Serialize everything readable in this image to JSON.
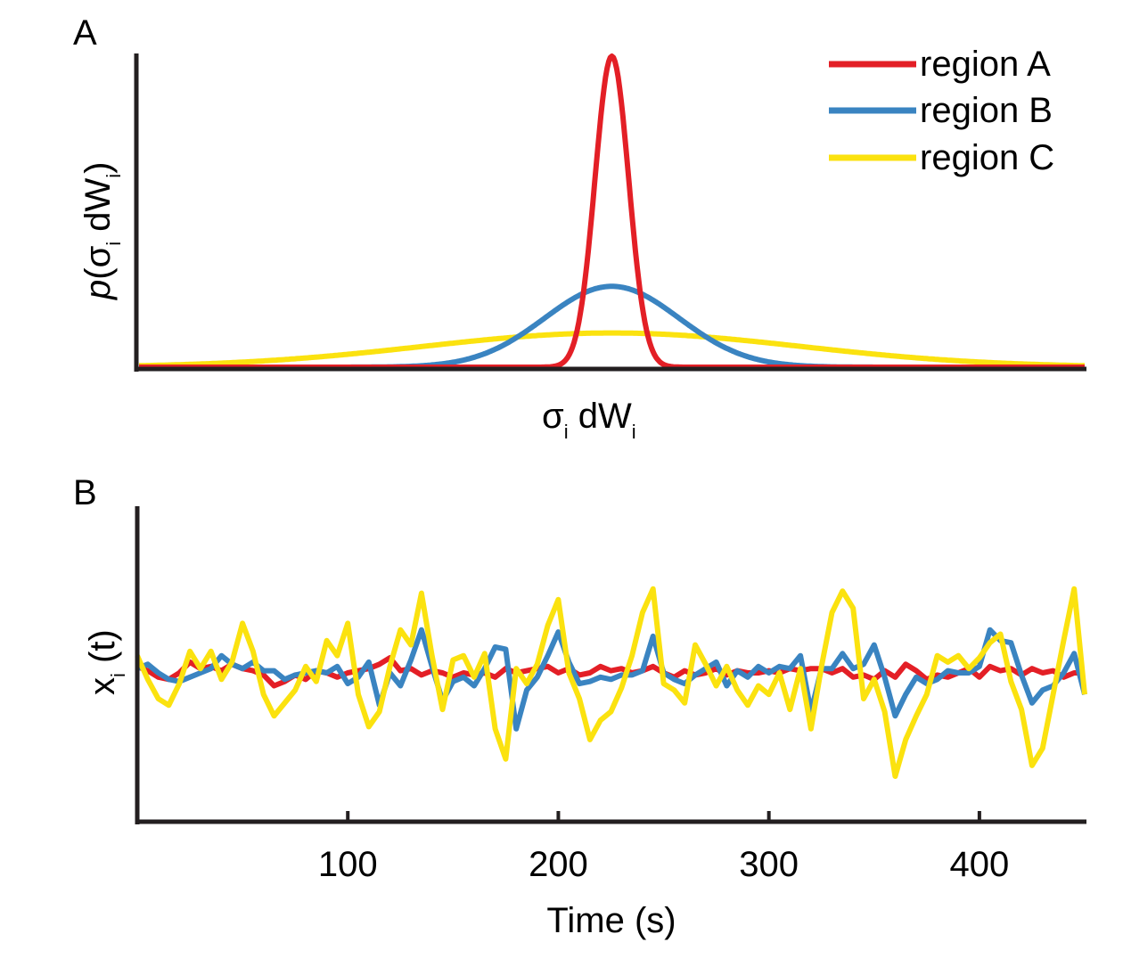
{
  "colors": {
    "region_a": "#e31f26",
    "region_b": "#3a84c1",
    "region_c": "#fbe20f",
    "axis": "#231f20"
  },
  "panels": {
    "a_letter": "A",
    "b_letter": "B"
  },
  "chart_data": [
    {
      "type": "line",
      "panel": "A",
      "xlabel_main": "σ",
      "xlabel_sub1": "i",
      "xlabel_mid": " dW",
      "xlabel_sub2": "i",
      "ylabel_pre": "p",
      "ylabel_open": "(σ",
      "ylabel_sub1": "i",
      "ylabel_mid": " dW",
      "ylabel_sub2": "i",
      "ylabel_close": ")",
      "xlim": [
        -225,
        225
      ],
      "ylim": [
        0,
        1
      ],
      "legend_position": "top-right",
      "series": [
        {
          "name": "region A",
          "color_key": "region_a",
          "distribution": "gaussian",
          "mean": 0,
          "sd": 8,
          "peak": 1.0
        },
        {
          "name": "region B",
          "color_key": "region_b",
          "distribution": "gaussian",
          "mean": 0,
          "sd": 32,
          "peak": 0.26
        },
        {
          "name": "region C",
          "color_key": "region_c",
          "distribution": "gaussian",
          "mean": 0,
          "sd": 90,
          "peak": 0.11
        }
      ]
    },
    {
      "type": "line",
      "panel": "B",
      "xlabel": "Time (s)",
      "ylabel_main": "x",
      "ylabel_sub": "i",
      "ylabel_rest": " (t)",
      "xlim": [
        0,
        450
      ],
      "ylim": [
        -6,
        6
      ],
      "xticks": [
        100,
        200,
        300,
        400
      ],
      "xtick_labels": [
        "100",
        "200",
        "300",
        "400"
      ],
      "series": [
        {
          "name": "region A",
          "color_key": "region_a",
          "x": [
            0,
            5,
            10,
            15,
            20,
            25,
            30,
            35,
            40,
            45,
            50,
            55,
            60,
            65,
            70,
            75,
            80,
            85,
            90,
            95,
            100,
            105,
            110,
            115,
            120,
            125,
            130,
            135,
            140,
            145,
            150,
            155,
            160,
            165,
            170,
            175,
            180,
            185,
            190,
            195,
            200,
            205,
            210,
            215,
            220,
            225,
            230,
            235,
            240,
            245,
            250,
            255,
            260,
            265,
            270,
            275,
            280,
            285,
            290,
            295,
            300,
            305,
            310,
            315,
            320,
            325,
            330,
            335,
            340,
            345,
            350,
            355,
            360,
            365,
            370,
            375,
            380,
            385,
            390,
            395,
            400,
            405,
            410,
            415,
            420,
            425,
            430,
            435,
            440,
            445,
            450
          ],
          "y": [
            0.3,
            0.1,
            -0.2,
            -0.3,
            0.0,
            0.5,
            0.2,
            0.3,
            0.1,
            0.4,
            0.2,
            0.1,
            -0.1,
            -0.6,
            -0.4,
            -0.1,
            -0.3,
            0.1,
            0.0,
            -0.2,
            0.0,
            0.1,
            0.2,
            0.4,
            0.7,
            0.1,
            0.2,
            -0.1,
            0.1,
            0.0,
            -0.2,
            0.0,
            -0.1,
            0.0,
            -0.2,
            0.2,
            0.0,
            0.1,
            0.2,
            0.3,
            0.0,
            0.2,
            -0.1,
            0.0,
            0.3,
            0.1,
            0.2,
            0.0,
            0.1,
            0.3,
            0.0,
            -0.2,
            0.1,
            -0.1,
            0.0,
            0.2,
            -0.1,
            0.1,
            0.0,
            0.0,
            0.1,
            0.0,
            0.2,
            0.1,
            0.2,
            0.2,
            0.0,
            0.2,
            -0.2,
            -0.1,
            -0.3,
            0.1,
            -0.2,
            0.4,
            0.1,
            -0.3,
            -0.1,
            -0.2,
            0.0,
            0.2,
            -0.2,
            0.3,
            0.1,
            0.2,
            -0.1,
            0.2,
            0.0,
            0.1,
            -0.2,
            0.0,
            0.0
          ]
        },
        {
          "name": "region B",
          "color_key": "region_b",
          "x": [
            0,
            5,
            10,
            15,
            20,
            25,
            30,
            35,
            40,
            45,
            50,
            55,
            60,
            65,
            70,
            75,
            80,
            85,
            90,
            95,
            100,
            105,
            110,
            115,
            120,
            125,
            130,
            135,
            140,
            145,
            150,
            155,
            160,
            165,
            170,
            175,
            180,
            185,
            190,
            195,
            200,
            205,
            210,
            215,
            220,
            225,
            230,
            235,
            240,
            245,
            250,
            255,
            260,
            265,
            270,
            275,
            280,
            285,
            290,
            295,
            300,
            305,
            310,
            315,
            320,
            325,
            330,
            335,
            340,
            345,
            350,
            355,
            360,
            365,
            370,
            375,
            380,
            385,
            390,
            395,
            400,
            405,
            410,
            415,
            420,
            425,
            430,
            435,
            440,
            445,
            450
          ],
          "y": [
            0.2,
            0.4,
            0.0,
            -0.3,
            -0.4,
            -0.2,
            0.0,
            0.2,
            0.8,
            0.4,
            0.2,
            0.5,
            0.1,
            0.1,
            -0.3,
            -0.1,
            0.0,
            0.1,
            0.0,
            0.3,
            -0.5,
            -0.2,
            0.5,
            -1.5,
            0.0,
            -0.6,
            0.6,
            2.0,
            0.3,
            -1.3,
            -0.4,
            -0.2,
            -0.6,
            0.2,
            1.2,
            1.1,
            -2.6,
            -0.8,
            -0.2,
            0.8,
            1.9,
            0.5,
            -0.5,
            -0.4,
            -0.2,
            -0.3,
            -0.1,
            -0.1,
            0.1,
            1.7,
            0.0,
            -0.3,
            -0.5,
            -0.1,
            0.2,
            0.5,
            -0.6,
            0.1,
            -0.2,
            0.3,
            0.0,
            0.3,
            0.2,
            0.8,
            -1.8,
            0.2,
            0.2,
            0.9,
            0.2,
            0.4,
            1.3,
            -0.2,
            -2.0,
            -1.0,
            -0.2,
            -0.5,
            -0.3,
            0.1,
            0.0,
            0.0,
            0.3,
            2.0,
            1.5,
            1.4,
            -0.1,
            -1.4,
            -0.8,
            -0.6,
            0.0,
            0.9,
            -1.0
          ]
        },
        {
          "name": "region C",
          "color_key": "region_c",
          "x": [
            0,
            5,
            10,
            15,
            20,
            25,
            30,
            35,
            40,
            45,
            50,
            55,
            60,
            65,
            70,
            75,
            80,
            85,
            90,
            95,
            100,
            105,
            110,
            115,
            120,
            125,
            130,
            135,
            140,
            145,
            150,
            155,
            160,
            165,
            170,
            175,
            180,
            185,
            190,
            195,
            200,
            205,
            210,
            215,
            220,
            225,
            230,
            235,
            240,
            245,
            250,
            255,
            260,
            265,
            270,
            275,
            280,
            285,
            290,
            295,
            300,
            305,
            310,
            315,
            320,
            325,
            330,
            335,
            340,
            345,
            350,
            355,
            360,
            365,
            370,
            375,
            380,
            385,
            390,
            395,
            400,
            405,
            410,
            415,
            420,
            425,
            430,
            435,
            440,
            445,
            450
          ],
          "y": [
            0.8,
            -0.3,
            -1.2,
            -1.5,
            -0.5,
            1.0,
            0.2,
            1.0,
            -0.3,
            0.5,
            2.3,
            1.0,
            -1.0,
            -2.0,
            -1.4,
            -0.8,
            0.3,
            -0.4,
            1.5,
            0.8,
            2.3,
            -1.0,
            -2.5,
            -1.8,
            0.3,
            2.0,
            1.3,
            3.7,
            0.8,
            -1.7,
            0.6,
            0.8,
            -0.2,
            0.9,
            -2.6,
            -4.0,
            0.2,
            -0.5,
            0.4,
            2.2,
            3.4,
            0.0,
            -1.2,
            -3.1,
            -2.2,
            -1.8,
            -0.7,
            0.8,
            2.8,
            3.9,
            -0.5,
            -0.8,
            -1.4,
            1.3,
            0.4,
            -0.6,
            0.3,
            -0.8,
            -1.5,
            -0.6,
            -1.0,
            0.0,
            -1.7,
            0.2,
            -2.6,
            0.3,
            2.8,
            3.8,
            3.0,
            -1.2,
            -0.3,
            -1.8,
            -4.8,
            -3.1,
            -2.0,
            -1.0,
            0.8,
            0.5,
            0.8,
            0.2,
            0.7,
            1.4,
            1.8,
            -0.4,
            -1.7,
            -4.3,
            -3.5,
            -1.0,
            1.5,
            3.9,
            -1.0
          ]
        }
      ]
    }
  ]
}
